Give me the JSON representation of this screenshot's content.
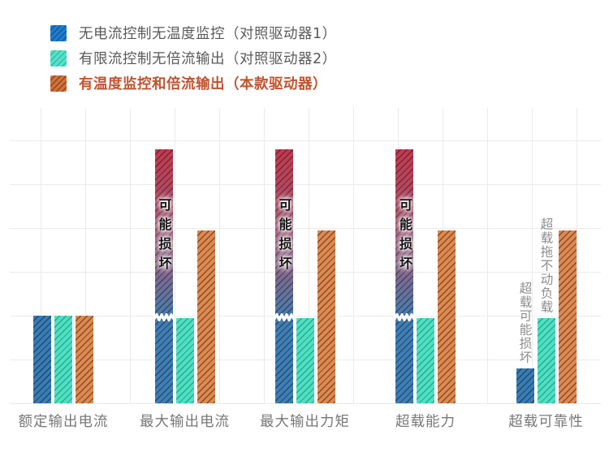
{
  "legend": {
    "items": [
      {
        "label": "无电流控制无温度监控（对照驱动器1）",
        "color": "#1f7ecb",
        "hatch": "#14569e",
        "text_color": "#595959",
        "bold": false
      },
      {
        "label": "有限流控制无倍流输出（对照驱动器2）",
        "color": "#55e2c8",
        "hatch": "#2fbfa2",
        "text_color": "#595959",
        "bold": false
      },
      {
        "label": "有温度监控和倍流输出（本款驱动器）",
        "color": "#d4703a",
        "hatch": "#8a4a22",
        "text_color": "#bf5430",
        "bold": true
      }
    ]
  },
  "chart_data": {
    "type": "bar",
    "title": "",
    "xlabel": "",
    "ylabel": "",
    "grid": true,
    "legend_position": "top-left",
    "value_note": "no numeric axis shown; values are heights in gridline units (1 unit = one horizontal grid step)",
    "categories": [
      "额定输出电流",
      "最大输出电流",
      "最大输出力矩",
      "超载能力",
      "超载可靠性"
    ],
    "series": [
      {
        "name": "无电流控制无温度监控（对照驱动器1）",
        "color": "#3a7cb4",
        "hatch_color": "#1e4a70",
        "values": [
          2,
          5.8,
          5.8,
          5.8,
          0.8
        ],
        "damaged": [
          false,
          true,
          true,
          true,
          false
        ],
        "on_bar_labels": [
          null,
          "可能损坏",
          "可能损坏",
          "可能损坏",
          null
        ],
        "above_bar_labels": [
          null,
          null,
          null,
          null,
          "超载可能损坏"
        ]
      },
      {
        "name": "有限流控制无倍流输出（对照驱动器2）",
        "color": "#4fe0c3",
        "hatch_color": "#2aa98f",
        "values": [
          2,
          1.95,
          1.95,
          1.95,
          1.95
        ],
        "damaged": [
          false,
          false,
          false,
          false,
          false
        ],
        "on_bar_labels": [
          null,
          null,
          null,
          null,
          null
        ],
        "above_bar_labels": [
          null,
          null,
          null,
          null,
          "超载拖不动负载"
        ]
      },
      {
        "name": "有温度监控和倍流输出（本款驱动器）",
        "color": "#dd8a50",
        "hatch_color": "#8a4a28",
        "values": [
          2,
          3.95,
          3.95,
          3.95,
          3.95
        ],
        "damaged": [
          false,
          false,
          false,
          false,
          false
        ],
        "on_bar_labels": [
          null,
          null,
          null,
          null,
          null
        ],
        "above_bar_labels": [
          null,
          null,
          null,
          null,
          null
        ]
      }
    ],
    "damage_gradient": {
      "top": "#c23b4d",
      "upper_mid": "#b04c63",
      "mid": "#8a6588",
      "lower_mid": "#527aa6",
      "bottom": "#3d7fb5"
    }
  },
  "colors": {
    "grid": "#ebebeb",
    "category_label": "#787878",
    "annotation_gray": "#8c8c8c",
    "on_bar_text": "#141414",
    "bar_break": "#ffffff"
  }
}
